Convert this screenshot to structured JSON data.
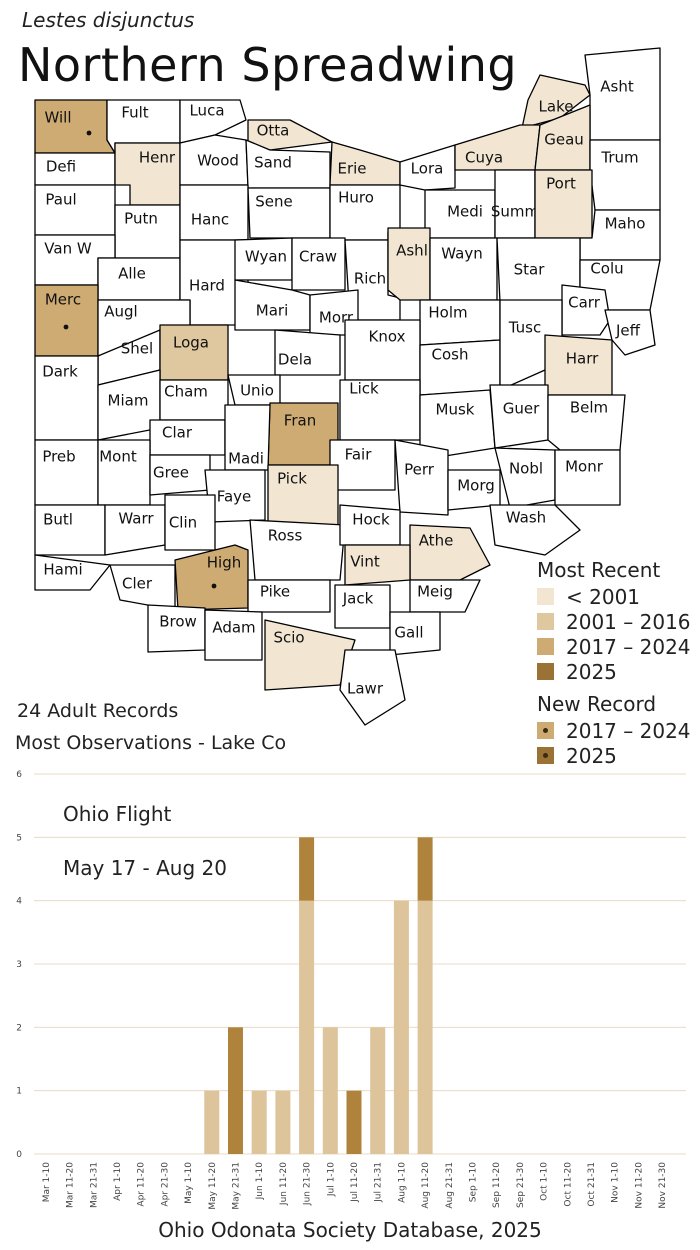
{
  "species": {
    "scientific_name": "Lestes disjunctus",
    "common_name": "Northern Spreadwing"
  },
  "colors": {
    "none": "#ffffff",
    "pre2001": "#f2e6d3",
    "y2001_2016": "#dfc8a0",
    "y2017_2024": "#cfab74",
    "y2025": "#9a7235",
    "chart_historic": "#ddc49a",
    "chart_2025": "#b0833c",
    "border": "#000000"
  },
  "legend": {
    "most_recent_title": "Most Recent",
    "most_recent_items": [
      {
        "label": "< 2001",
        "color": "#f2e6d3"
      },
      {
        "label": "2001 – 2016",
        "color": "#dfc8a0"
      },
      {
        "label": "2017 – 2024",
        "color": "#cfab74"
      },
      {
        "label": "2025",
        "color": "#9a7235"
      }
    ],
    "new_record_title": "New Record",
    "new_record_items": [
      {
        "label": "2017 – 2024",
        "color": "#cfab74"
      },
      {
        "label": "2025",
        "color": "#9a7235"
      }
    ]
  },
  "stats": {
    "adult_records": "24 Adult Records",
    "most_observations": "Most Observations - Lake Co"
  },
  "flight": {
    "title": "Ohio Flight",
    "dates": "May 17 - Aug 20"
  },
  "footer": "Ohio Odonata Society Database, 2025",
  "counties": [
    {
      "name": "Will",
      "status": "y2017_2024",
      "new": true
    },
    {
      "name": "Fult",
      "status": "none"
    },
    {
      "name": "Luca",
      "status": "none"
    },
    {
      "name": "Otta",
      "status": "pre2001"
    },
    {
      "name": "Lake",
      "status": "pre2001"
    },
    {
      "name": "Asht",
      "status": "none"
    },
    {
      "name": "Defi",
      "status": "none"
    },
    {
      "name": "Henr",
      "status": "pre2001"
    },
    {
      "name": "Wood",
      "status": "none"
    },
    {
      "name": "Sand",
      "status": "none"
    },
    {
      "name": "Erie",
      "status": "pre2001"
    },
    {
      "name": "Lora",
      "status": "none"
    },
    {
      "name": "Cuya",
      "status": "pre2001"
    },
    {
      "name": "Geau",
      "status": "pre2001"
    },
    {
      "name": "Trum",
      "status": "none"
    },
    {
      "name": "Paul",
      "status": "none"
    },
    {
      "name": "Putn",
      "status": "none"
    },
    {
      "name": "Hanc",
      "status": "none"
    },
    {
      "name": "Sene",
      "status": "none"
    },
    {
      "name": "Huro",
      "status": "none"
    },
    {
      "name": "Medi",
      "status": "none"
    },
    {
      "name": "Summ",
      "status": "none"
    },
    {
      "name": "Port",
      "status": "pre2001"
    },
    {
      "name": "Maho",
      "status": "none"
    },
    {
      "name": "Van W",
      "status": "none"
    },
    {
      "name": "Alle",
      "status": "none"
    },
    {
      "name": "Hard",
      "status": "none"
    },
    {
      "name": "Wyan",
      "status": "none"
    },
    {
      "name": "Craw",
      "status": "none"
    },
    {
      "name": "Rich",
      "status": "none"
    },
    {
      "name": "Ashl",
      "status": "pre2001"
    },
    {
      "name": "Wayn",
      "status": "none"
    },
    {
      "name": "Star",
      "status": "none"
    },
    {
      "name": "Colu",
      "status": "none"
    },
    {
      "name": "Merc",
      "status": "y2017_2024",
      "new": true
    },
    {
      "name": "Augl",
      "status": "none"
    },
    {
      "name": "Mari",
      "status": "none"
    },
    {
      "name": "Morr",
      "status": "none"
    },
    {
      "name": "Holm",
      "status": "none"
    },
    {
      "name": "Carr",
      "status": "none"
    },
    {
      "name": "Jeff",
      "status": "none"
    },
    {
      "name": "Shel",
      "status": "none"
    },
    {
      "name": "Loga",
      "status": "y2001_2016"
    },
    {
      "name": "Dela",
      "status": "none"
    },
    {
      "name": "Knox",
      "status": "none"
    },
    {
      "name": "Cosh",
      "status": "none"
    },
    {
      "name": "Tusc",
      "status": "none"
    },
    {
      "name": "Harr",
      "status": "pre2001"
    },
    {
      "name": "Dark",
      "status": "none"
    },
    {
      "name": "Miam",
      "status": "none"
    },
    {
      "name": "Cham",
      "status": "none"
    },
    {
      "name": "Unio",
      "status": "none"
    },
    {
      "name": "Lick",
      "status": "none"
    },
    {
      "name": "Musk",
      "status": "none"
    },
    {
      "name": "Guer",
      "status": "none"
    },
    {
      "name": "Belm",
      "status": "none"
    },
    {
      "name": "Fran",
      "status": "y2017_2024"
    },
    {
      "name": "Clar",
      "status": "none"
    },
    {
      "name": "Madi",
      "status": "none"
    },
    {
      "name": "Fair",
      "status": "none"
    },
    {
      "name": "Perr",
      "status": "none"
    },
    {
      "name": "Nobl",
      "status": "none"
    },
    {
      "name": "Monr",
      "status": "none"
    },
    {
      "name": "Preb",
      "status": "none"
    },
    {
      "name": "Mont",
      "status": "none"
    },
    {
      "name": "Gree",
      "status": "none"
    },
    {
      "name": "Faye",
      "status": "none"
    },
    {
      "name": "Pick",
      "status": "pre2001"
    },
    {
      "name": "Morg",
      "status": "none"
    },
    {
      "name": "Wash",
      "status": "none"
    },
    {
      "name": "Butl",
      "status": "none"
    },
    {
      "name": "Warr",
      "status": "none"
    },
    {
      "name": "Clin",
      "status": "none"
    },
    {
      "name": "Ross",
      "status": "none"
    },
    {
      "name": "Hock",
      "status": "none"
    },
    {
      "name": "Athe",
      "status": "pre2001"
    },
    {
      "name": "Vint",
      "status": "pre2001"
    },
    {
      "name": "Hami",
      "status": "none"
    },
    {
      "name": "Cler",
      "status": "none"
    },
    {
      "name": "High",
      "status": "y2017_2024",
      "new": true
    },
    {
      "name": "Pike",
      "status": "none"
    },
    {
      "name": "Jack",
      "status": "none"
    },
    {
      "name": "Meig",
      "status": "none"
    },
    {
      "name": "Brow",
      "status": "none"
    },
    {
      "name": "Adam",
      "status": "none"
    },
    {
      "name": "Scio",
      "status": "pre2001"
    },
    {
      "name": "Gall",
      "status": "none"
    },
    {
      "name": "Lawr",
      "status": "none"
    }
  ],
  "chart_data": {
    "type": "bar",
    "stacked": true,
    "categories": [
      "Mar 1-10",
      "Mar 11-20",
      "Mar 21-31",
      "Apr 1-10",
      "Apr 11-20",
      "Apr 21-30",
      "May 1-10",
      "May 11-20",
      "May 21-31",
      "Jun 1-10",
      "Jun 11-20",
      "Jun 21-30",
      "Jul 1-10",
      "Jul 11-20",
      "Jul 21-31",
      "Aug 1-10",
      "Aug 11-20",
      "Aug 21-31",
      "Sep 1-10",
      "Sep 11-20",
      "Sep 21-30",
      "Oct 1-10",
      "Oct 11-20",
      "Oct 21-31",
      "Nov 1-10",
      "Nov 11-20",
      "Nov 21-30"
    ],
    "series": [
      {
        "key": "historic",
        "values": [
          0,
          0,
          0,
          0,
          0,
          0,
          0,
          1,
          0,
          1,
          1,
          4,
          2,
          0,
          2,
          4,
          4,
          0,
          0,
          0,
          0,
          0,
          0,
          0,
          0,
          0,
          0
        ]
      },
      {
        "key": "current",
        "values": [
          0,
          0,
          0,
          0,
          0,
          0,
          0,
          0,
          2,
          0,
          0,
          1,
          0,
          1,
          0,
          0,
          1,
          0,
          0,
          0,
          0,
          0,
          0,
          0,
          0,
          0,
          0
        ]
      }
    ],
    "ylim": [
      0,
      6
    ],
    "yticks": [
      0,
      1,
      2,
      3,
      4,
      5,
      6
    ],
    "grid": true
  }
}
